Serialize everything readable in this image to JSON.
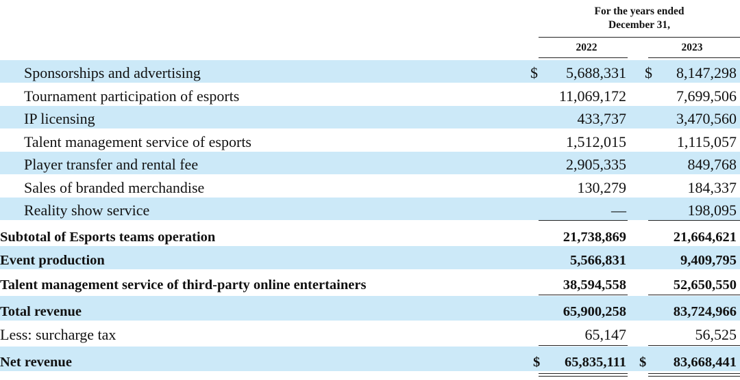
{
  "header": {
    "period_line1": "For the years ended",
    "period_line2": "December 31,",
    "col1_year": "2022",
    "col2_year": "2023"
  },
  "currency_symbol": "$",
  "rows": [
    {
      "label": "Sponsorships and advertising",
      "v2022": "5,688,331",
      "v2023": "8,147,298"
    },
    {
      "label": "Tournament participation of esports",
      "v2022": "11,069,172",
      "v2023": "7,699,506"
    },
    {
      "label": "IP licensing",
      "v2022": "433,737",
      "v2023": "3,470,560"
    },
    {
      "label": "Talent management service of esports",
      "v2022": "1,512,015",
      "v2023": "1,115,057"
    },
    {
      "label": "Player transfer and rental fee",
      "v2022": "2,905,335",
      "v2023": "849,768"
    },
    {
      "label": "Sales of branded merchandise",
      "v2022": "130,279",
      "v2023": "184,337"
    },
    {
      "label": "Reality show service",
      "v2022": "—",
      "v2023": "198,095"
    },
    {
      "label": "Subtotal of Esports teams operation",
      "v2022": "21,738,869",
      "v2023": "21,664,621"
    },
    {
      "label": "Event production",
      "v2022": "5,566,831",
      "v2023": "9,409,795"
    },
    {
      "label": "Talent management service of third-party online entertainers",
      "v2022": "38,594,558",
      "v2023": "52,650,550"
    },
    {
      "label": "Total revenue",
      "v2022": "65,900,258",
      "v2023": "83,724,966"
    },
    {
      "label": "Less: surcharge tax",
      "v2022": "65,147",
      "v2023": "56,525"
    },
    {
      "label": "Net revenue",
      "v2022": "65,835,111",
      "v2023": "83,668,441"
    }
  ]
}
